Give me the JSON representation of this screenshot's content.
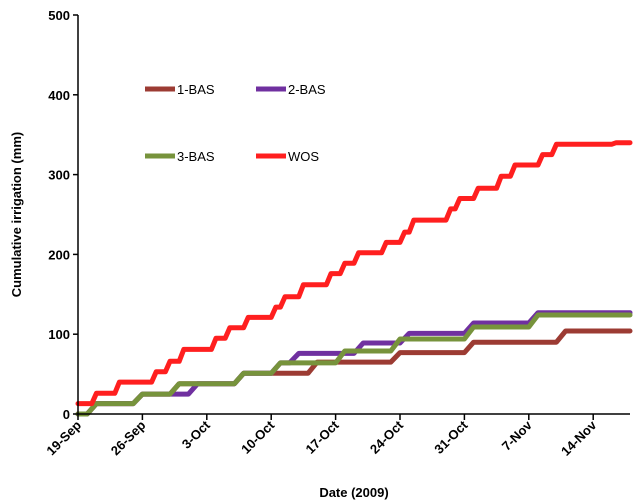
{
  "chart_data": {
    "type": "line",
    "title": "",
    "xlabel": "Date (2009)",
    "ylabel": "Cumulative irrigation (mm)",
    "ylim": [
      0,
      500
    ],
    "yticks": [
      "0",
      "100",
      "200",
      "300",
      "400",
      "500"
    ],
    "xlim": [
      0,
      60
    ],
    "xtick_values": [
      0,
      7,
      14,
      21,
      28,
      35,
      42,
      49,
      56
    ],
    "xtick_labels": [
      "19-Sep",
      "26-Sep",
      "3-Oct",
      "10-Oct",
      "17-Oct",
      "24-Oct",
      "31-Oct",
      "7-Nov",
      "14-Nov"
    ],
    "grid": false,
    "legend": "upper-left-inside",
    "series": [
      {
        "name": "1-BAS",
        "color": "#9c3b33",
        "x": [
          0,
          1,
          2,
          6,
          7,
          10,
          11,
          14,
          15,
          17,
          18,
          21,
          22,
          25,
          26,
          28,
          30,
          34,
          35,
          42,
          43,
          49,
          50,
          52,
          53,
          60
        ],
        "y": [
          0,
          0,
          13,
          13,
          25,
          25,
          38,
          38,
          38,
          38,
          51,
          51,
          51,
          51,
          65,
          65,
          65,
          65,
          77,
          77,
          90,
          90,
          90,
          90,
          104,
          104
        ]
      },
      {
        "name": "2-BAS",
        "color": "#7030a0",
        "x": [
          0,
          1,
          2,
          6,
          7,
          12,
          13,
          14,
          15,
          17,
          18,
          21,
          22,
          23,
          24,
          26,
          27,
          30,
          31,
          32,
          33,
          35,
          36,
          42,
          43,
          46,
          47,
          49,
          50,
          60
        ],
        "y": [
          0,
          0,
          13,
          13,
          25,
          25,
          38,
          38,
          38,
          38,
          51,
          51,
          64,
          64,
          76,
          76,
          76,
          76,
          89,
          89,
          89,
          89,
          101,
          101,
          114,
          114,
          114,
          114,
          127,
          127
        ]
      },
      {
        "name": "3-BAS",
        "color": "#77933c",
        "x": [
          0,
          1,
          2,
          6,
          7,
          10,
          11,
          14,
          15,
          17,
          18,
          21,
          22,
          25,
          26,
          28,
          29,
          34,
          35,
          42,
          43,
          46,
          47,
          49,
          50,
          60
        ],
        "y": [
          0,
          0,
          13,
          13,
          25,
          25,
          38,
          38,
          38,
          38,
          51,
          51,
          64,
          64,
          64,
          64,
          79,
          79,
          94,
          94,
          109,
          109,
          109,
          109,
          124,
          124
        ]
      },
      {
        "name": "WOS",
        "color": "#ff1f1f",
        "x": [
          0,
          1.5,
          2,
          2.5,
          3,
          4,
          4.5,
          6,
          6.5,
          8,
          8.5,
          9.5,
          10,
          11,
          11.5,
          13,
          13.5,
          14.5,
          15,
          16,
          16.5,
          18,
          18.5,
          19,
          19.5,
          21,
          21.5,
          22,
          22.5,
          24,
          24.5,
          26,
          26.5,
          27,
          27.5,
          28.5,
          29,
          30,
          30.5,
          32,
          32.5,
          33,
          33.5,
          35,
          35.5,
          36,
          36.5,
          38,
          38.5,
          40,
          40.5,
          41,
          41.5,
          43,
          43.5,
          44,
          44.5,
          45.5,
          46,
          47,
          47.5,
          49,
          49.5,
          50,
          50.5,
          51.5,
          52,
          53,
          53.5,
          55,
          55.5,
          56.5,
          57,
          58,
          58.5,
          60
        ],
        "y": [
          13,
          13,
          26,
          26,
          26,
          26,
          40,
          40,
          40,
          40,
          53,
          53,
          66,
          66,
          81,
          81,
          81,
          81,
          95,
          95,
          108,
          108,
          121,
          121,
          121,
          121,
          134,
          134,
          147,
          147,
          162,
          162,
          162,
          162,
          176,
          176,
          189,
          189,
          202,
          202,
          202,
          202,
          215,
          215,
          228,
          228,
          243,
          243,
          243,
          243,
          257,
          257,
          270,
          270,
          283,
          283,
          283,
          283,
          298,
          298,
          312,
          312,
          312,
          312,
          325,
          325,
          338,
          338,
          338,
          338,
          338,
          338,
          338,
          338,
          340,
          340
        ]
      }
    ]
  }
}
